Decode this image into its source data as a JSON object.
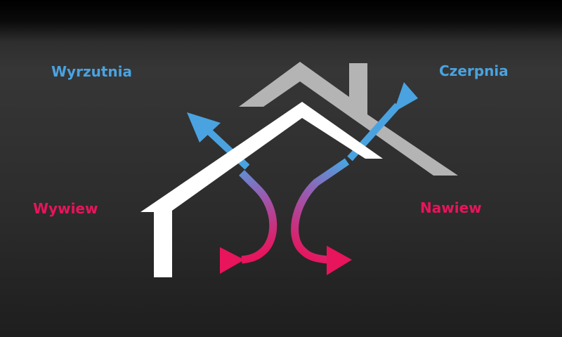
{
  "labels": {
    "exhaust": "Wyrzutnia",
    "intake": "Czerpnia",
    "extract": "Wywiew",
    "supply": "Nawiew"
  },
  "colors": {
    "background": "#2e2e2e",
    "house_front": "#ffffff",
    "house_back": "#b4b4b4",
    "fresh_air_blue": "#4aa3e0",
    "indoor_air_pink": "#e8145c"
  },
  "icons": {
    "house_front": "house-outline-front",
    "house_back": "house-outline-back",
    "exhaust_arrow": "arrow-up-left",
    "intake_arrow": "arrow-up-right",
    "extract_arrow": "arrow-right",
    "supply_arrow": "arrow-right"
  }
}
